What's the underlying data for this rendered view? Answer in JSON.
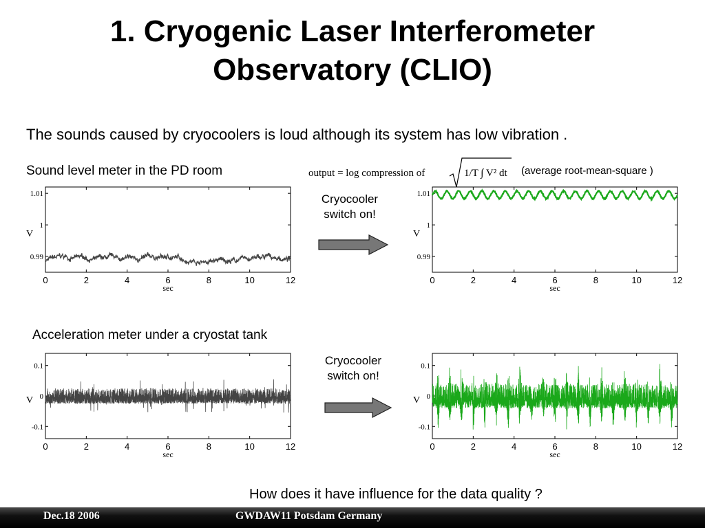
{
  "slide": {
    "title_line1": "1. Cryogenic Laser Interferometer",
    "title_line2": "Observatory (CLIO)",
    "subtitle": "The sounds caused by cryocoolers is loud although its system has low vibration .",
    "sound_label": "Sound level meter in the PD room",
    "formula_text": "output = log compression of",
    "formula_sqrt": "1/T ∫ V² dt",
    "formula_note": "(average root-mean-square )",
    "callout1_line1": "Cryocooler",
    "callout1_line2": "switch on!",
    "accel_label": "Acceleration meter under a cryostat tank",
    "callout2_line1": "Cryocooler",
    "callout2_line2": "switch on!",
    "question": "How does it have influence for the data quality ?",
    "footer_left": "Dec.18 2006",
    "footer_center": "GWDAW11 Potsdam Germany"
  },
  "colors": {
    "before": "#444444",
    "after": "#1aa81a",
    "arrow": "#777777"
  },
  "chart_data": [
    {
      "type": "line",
      "ylabel": "V",
      "xlabel": "sec",
      "x_ticks": [
        "0",
        "2",
        "4",
        "6",
        "8",
        "10",
        "12"
      ],
      "y_ticks": [
        "1.01",
        "1",
        "0.99"
      ],
      "xlim": [
        0,
        12
      ],
      "ylim": [
        0.985,
        1.012
      ],
      "signal": "sound-before",
      "mean": 0.989,
      "amplitude": 0.0015
    },
    {
      "type": "line",
      "ylabel": "V",
      "xlabel": "sec",
      "x_ticks": [
        "0",
        "2",
        "4",
        "6",
        "8",
        "10",
        "12"
      ],
      "y_ticks": [
        "1.01",
        "1",
        "0.99"
      ],
      "xlim": [
        0,
        12
      ],
      "ylim": [
        0.985,
        1.012
      ],
      "signal": "sound-after",
      "mean": 1.0095,
      "amplitude": 0.0015,
      "cycles": 21
    },
    {
      "type": "line",
      "ylabel": "V",
      "xlabel": "sec",
      "x_ticks": [
        "0",
        "2",
        "4",
        "6",
        "8",
        "10",
        "12"
      ],
      "y_ticks": [
        "0.1",
        "0",
        "-0.1"
      ],
      "xlim": [
        0,
        12
      ],
      "ylim": [
        -0.14,
        0.14
      ],
      "signal": "accel-before",
      "amplitude": 0.025
    },
    {
      "type": "line",
      "ylabel": "V",
      "xlabel": "sec",
      "x_ticks": [
        "0",
        "2",
        "4",
        "6",
        "8",
        "10",
        "12"
      ],
      "y_ticks": [
        "0.1",
        "0",
        "-0.1"
      ],
      "xlim": [
        0,
        12
      ],
      "ylim": [
        -0.14,
        0.14
      ],
      "signal": "accel-after",
      "amplitude": 0.04,
      "burst_amplitude": 0.12,
      "bursts": 21
    }
  ]
}
